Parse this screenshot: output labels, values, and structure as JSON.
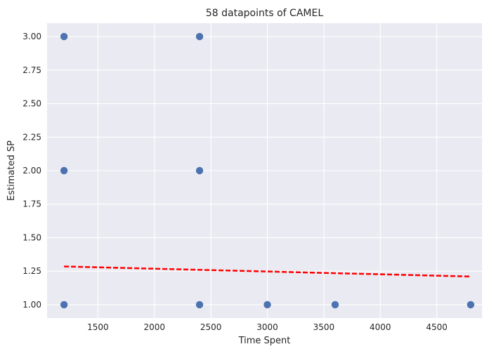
{
  "chart_data": {
    "type": "scatter",
    "title": "58 datapoints of CAMEL",
    "xlabel": "Time Spent",
    "ylabel": "Estimated SP",
    "xlim": [
      1050,
      4900
    ],
    "ylim": [
      0.9,
      3.1
    ],
    "xticks": [
      1500,
      2000,
      2500,
      3000,
      3500,
      4000,
      4500
    ],
    "yticks": [
      1.0,
      1.25,
      1.5,
      1.75,
      2.0,
      2.25,
      2.5,
      2.75,
      3.0
    ],
    "grid": true,
    "series": [
      {
        "marker": "circle",
        "color": "#4c72b0",
        "points": [
          {
            "x": 1200,
            "y": 3.0
          },
          {
            "x": 1200,
            "y": 2.0
          },
          {
            "x": 1200,
            "y": 1.0
          },
          {
            "x": 2400,
            "y": 3.0
          },
          {
            "x": 2400,
            "y": 2.0
          },
          {
            "x": 2400,
            "y": 1.0
          },
          {
            "x": 3000,
            "y": 1.0
          },
          {
            "x": 3600,
            "y": 1.0
          },
          {
            "x": 4800,
            "y": 1.0
          }
        ]
      }
    ],
    "trendline": {
      "style": "dashed",
      "color": "#ff0000",
      "x": [
        1200,
        4800
      ],
      "y": [
        1.285,
        1.21
      ]
    },
    "colors": {
      "plot_background": "#eaeaf2",
      "grid": "#ffffff",
      "text": "#262626"
    }
  }
}
